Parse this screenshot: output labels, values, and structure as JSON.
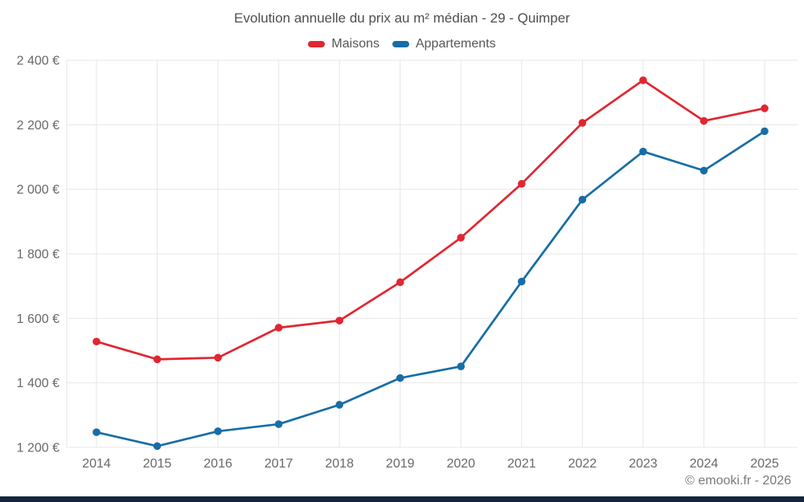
{
  "title": "Evolution annuelle du prix au m² médian - 29 - Quimper",
  "footer": "© emooki.fr - 2026",
  "legend": [
    {
      "label": "Maisons",
      "color": "#e02730"
    },
    {
      "label": "Appartements",
      "color": "#176da6"
    }
  ],
  "colors": {
    "grid": "#e7e7e7",
    "tick_label": "#686868",
    "title_text": "#4e4e4e",
    "bottom_bar": "#15253e"
  },
  "chart_data": {
    "type": "line",
    "title": "Evolution annuelle du prix au m² médian - 29 - Quimper",
    "x": [
      2014,
      2015,
      2016,
      2017,
      2018,
      2019,
      2020,
      2021,
      2022,
      2023,
      2024,
      2025
    ],
    "series": [
      {
        "name": "Maisons",
        "color": "#e02730",
        "values": [
          1528,
          1473,
          1478,
          1571,
          1593,
          1712,
          1850,
          2017,
          2206,
          2338,
          2212,
          2251
        ]
      },
      {
        "name": "Appartements",
        "color": "#176da6",
        "values": [
          1247,
          1204,
          1250,
          1272,
          1332,
          1415,
          1451,
          1714,
          1968,
          2117,
          2058,
          2180
        ]
      }
    ],
    "xlabel": "",
    "ylabel": "",
    "ylim": [
      1200,
      2400
    ],
    "yticks": [
      2400,
      2200,
      2000,
      1800,
      1600,
      1400,
      1200
    ],
    "ytick_labels": [
      "2 400 €",
      "2 200 €",
      "2 000 €",
      "1 800 €",
      "1 600 €",
      "1 400 €",
      "1 200 €"
    ],
    "xtick_labels": [
      "2014",
      "2015",
      "2016",
      "2017",
      "2018",
      "2019",
      "2020",
      "2021",
      "2022",
      "2023",
      "2024",
      "2025"
    ],
    "grid": true,
    "legend_position": "top",
    "marker": "circle"
  }
}
